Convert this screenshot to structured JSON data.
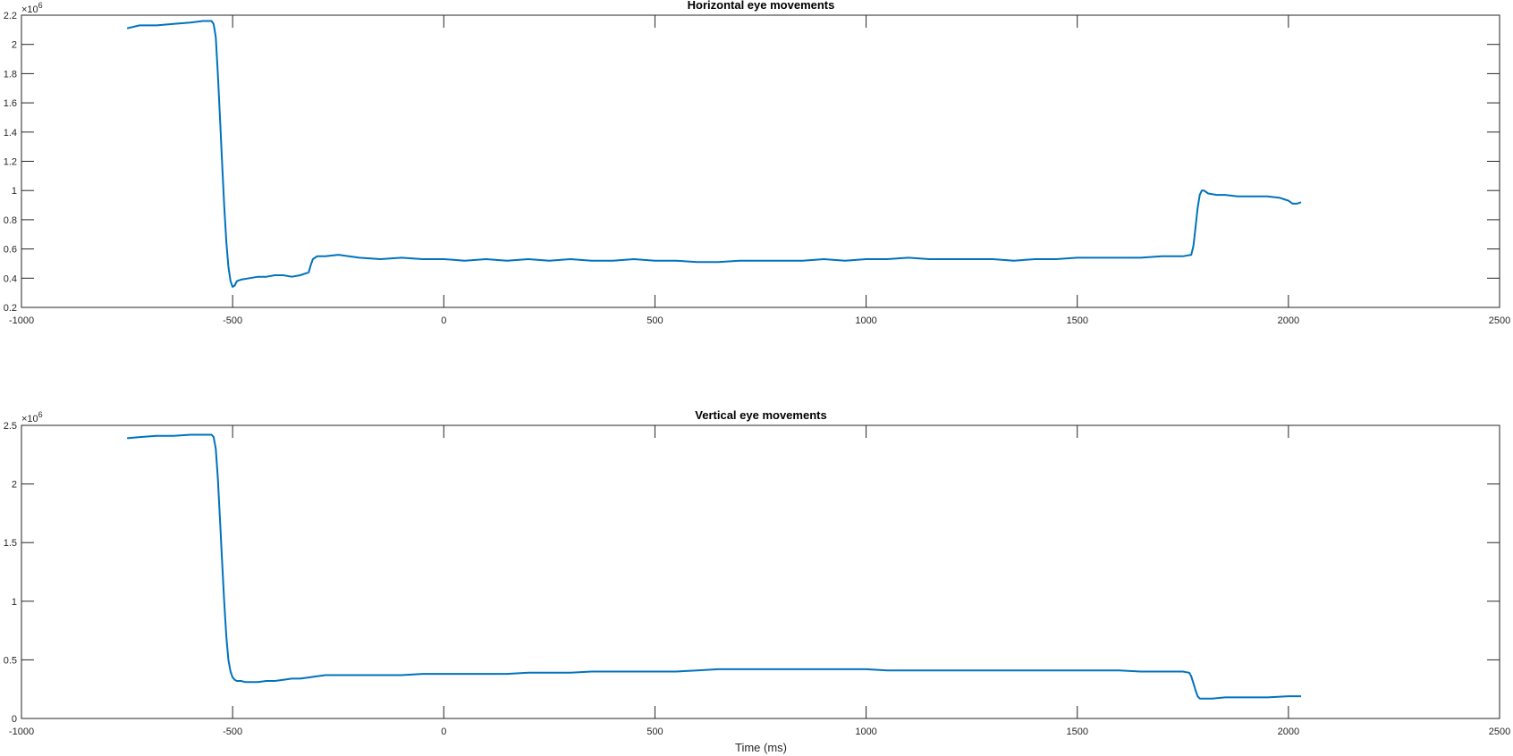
{
  "colors": {
    "line": "#0072BD",
    "axes": "#262626",
    "background": "#ffffff"
  },
  "chart_data": [
    {
      "type": "line",
      "title": "Horizontal eye movements",
      "xlabel": "",
      "ylabel": "",
      "xlim": [
        -1000,
        2500
      ],
      "ylim": [
        0.2,
        2.2
      ],
      "y_exponent": "×10",
      "y_exponent_power": "6",
      "grid": false,
      "x_ticks": [
        -1000,
        -500,
        0,
        500,
        1000,
        1500,
        2000,
        2500
      ],
      "x_tick_labels": [
        "-1000",
        "-500",
        "0",
        "500",
        "1000",
        "1500",
        "2000",
        "2500"
      ],
      "y_ticks": [
        0.2,
        0.4,
        0.6,
        0.8,
        1.0,
        1.2,
        1.4,
        1.6,
        1.8,
        2.0,
        2.2
      ],
      "y_tick_labels": [
        "0.2",
        "0.4",
        "0.6",
        "0.8",
        "1",
        "1.2",
        "1.4",
        "1.6",
        "1.8",
        "2",
        "2.2"
      ],
      "series": [
        {
          "x": [
            -750,
            -720,
            -680,
            -640,
            -600,
            -570,
            -550,
            -545,
            -540,
            -535,
            -530,
            -525,
            -520,
            -515,
            -510,
            -505,
            -500,
            -495,
            -490,
            -480,
            -460,
            -440,
            -420,
            -400,
            -380,
            -360,
            -340,
            -320,
            -315,
            -310,
            -300,
            -280,
            -250,
            -200,
            -150,
            -100,
            -50,
            0,
            50,
            100,
            150,
            200,
            250,
            300,
            350,
            400,
            450,
            500,
            550,
            600,
            650,
            700,
            750,
            800,
            850,
            900,
            950,
            1000,
            1050,
            1100,
            1150,
            1200,
            1250,
            1300,
            1350,
            1400,
            1450,
            1500,
            1550,
            1600,
            1650,
            1700,
            1750,
            1770,
            1775,
            1780,
            1785,
            1790,
            1795,
            1800,
            1810,
            1830,
            1850,
            1880,
            1900,
            1920,
            1950,
            1980,
            1990,
            2000,
            2010,
            2020,
            2030
          ],
          "y": [
            2.11,
            2.13,
            2.13,
            2.14,
            2.15,
            2.16,
            2.16,
            2.14,
            2.05,
            1.8,
            1.5,
            1.2,
            0.9,
            0.65,
            0.48,
            0.38,
            0.34,
            0.35,
            0.38,
            0.39,
            0.4,
            0.41,
            0.41,
            0.42,
            0.42,
            0.41,
            0.42,
            0.44,
            0.49,
            0.53,
            0.55,
            0.55,
            0.56,
            0.54,
            0.53,
            0.54,
            0.53,
            0.53,
            0.52,
            0.53,
            0.52,
            0.53,
            0.52,
            0.53,
            0.52,
            0.52,
            0.53,
            0.52,
            0.52,
            0.51,
            0.51,
            0.52,
            0.52,
            0.52,
            0.52,
            0.53,
            0.52,
            0.53,
            0.53,
            0.54,
            0.53,
            0.53,
            0.53,
            0.53,
            0.52,
            0.53,
            0.53,
            0.54,
            0.54,
            0.54,
            0.54,
            0.55,
            0.55,
            0.56,
            0.62,
            0.75,
            0.88,
            0.97,
            1.0,
            1.0,
            0.98,
            0.97,
            0.97,
            0.96,
            0.96,
            0.96,
            0.96,
            0.95,
            0.94,
            0.93,
            0.91,
            0.91,
            0.92
          ]
        }
      ]
    },
    {
      "type": "line",
      "title": "Vertical eye movements",
      "xlabel": "Time (ms)",
      "ylabel": "",
      "xlim": [
        -1000,
        2500
      ],
      "ylim": [
        0,
        2.5
      ],
      "y_exponent": "×10",
      "y_exponent_power": "6",
      "grid": false,
      "x_ticks": [
        -1000,
        -500,
        0,
        500,
        1000,
        1500,
        2000,
        2500
      ],
      "x_tick_labels": [
        "-1000",
        "-500",
        "0",
        "500",
        "1000",
        "1500",
        "2000",
        "2500"
      ],
      "y_ticks": [
        0,
        0.5,
        1.0,
        1.5,
        2.0,
        2.5
      ],
      "y_tick_labels": [
        "0",
        "0.5",
        "1",
        "1.5",
        "2",
        "2.5"
      ],
      "series": [
        {
          "x": [
            -750,
            -720,
            -680,
            -640,
            -600,
            -570,
            -550,
            -545,
            -540,
            -535,
            -530,
            -525,
            -520,
            -515,
            -510,
            -505,
            -500,
            -495,
            -490,
            -480,
            -470,
            -460,
            -440,
            -420,
            -400,
            -380,
            -360,
            -340,
            -320,
            -300,
            -280,
            -250,
            -200,
            -150,
            -100,
            -50,
            0,
            50,
            100,
            150,
            200,
            250,
            300,
            350,
            400,
            450,
            500,
            550,
            600,
            650,
            700,
            750,
            800,
            850,
            900,
            950,
            1000,
            1050,
            1100,
            1150,
            1200,
            1250,
            1300,
            1350,
            1400,
            1450,
            1500,
            1550,
            1600,
            1650,
            1700,
            1750,
            1765,
            1770,
            1775,
            1780,
            1785,
            1790,
            1800,
            1820,
            1850,
            1900,
            1950,
            2000,
            2030
          ],
          "y": [
            2.39,
            2.4,
            2.41,
            2.41,
            2.42,
            2.42,
            2.42,
            2.4,
            2.3,
            2.05,
            1.7,
            1.35,
            1.0,
            0.7,
            0.5,
            0.4,
            0.35,
            0.33,
            0.32,
            0.32,
            0.31,
            0.31,
            0.31,
            0.32,
            0.32,
            0.33,
            0.34,
            0.34,
            0.35,
            0.36,
            0.37,
            0.37,
            0.37,
            0.37,
            0.37,
            0.38,
            0.38,
            0.38,
            0.38,
            0.38,
            0.39,
            0.39,
            0.39,
            0.4,
            0.4,
            0.4,
            0.4,
            0.4,
            0.41,
            0.42,
            0.42,
            0.42,
            0.42,
            0.42,
            0.42,
            0.42,
            0.42,
            0.41,
            0.41,
            0.41,
            0.41,
            0.41,
            0.41,
            0.41,
            0.41,
            0.41,
            0.41,
            0.41,
            0.41,
            0.4,
            0.4,
            0.4,
            0.39,
            0.36,
            0.3,
            0.24,
            0.19,
            0.17,
            0.17,
            0.17,
            0.18,
            0.18,
            0.18,
            0.19,
            0.19
          ]
        }
      ]
    }
  ]
}
